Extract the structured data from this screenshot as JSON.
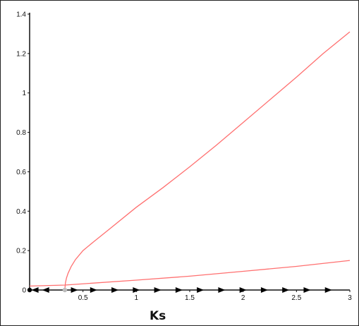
{
  "chart_data": {
    "type": "line",
    "title": "",
    "xlabel": "Ks",
    "ylabel": "",
    "xlim": [
      0,
      3
    ],
    "ylim": [
      0,
      1.4
    ],
    "xticks": [
      {
        "value": 0.5,
        "label": "0.5"
      },
      {
        "value": 1,
        "label": "1"
      },
      {
        "value": 1.5,
        "label": "1.5"
      },
      {
        "value": 2,
        "label": "2"
      },
      {
        "value": 2.5,
        "label": "2.5"
      },
      {
        "value": 3,
        "label": "3"
      }
    ],
    "yticks": [
      {
        "value": 0,
        "label": "0"
      },
      {
        "value": 0.2,
        "label": "0.2"
      },
      {
        "value": 0.4,
        "label": "0.4"
      },
      {
        "value": 0.6,
        "label": "0.6"
      },
      {
        "value": 0.8,
        "label": "0.8"
      },
      {
        "value": 1,
        "label": "1"
      },
      {
        "value": 1.2,
        "label": "1.2"
      },
      {
        "value": 1.4,
        "label": "1.4"
      }
    ],
    "grid": false,
    "legend": "none",
    "series": [
      {
        "color": "#ff7070",
        "x": [
          0.33,
          0.335,
          0.345,
          0.36,
          0.39,
          0.43,
          0.5,
          0.6,
          0.75,
          1.0,
          1.25,
          1.5,
          1.75,
          2.0,
          2.25,
          2.5,
          2.75,
          3.0
        ],
        "y": [
          0.0,
          0.035,
          0.06,
          0.085,
          0.12,
          0.155,
          0.2,
          0.245,
          0.31,
          0.42,
          0.52,
          0.625,
          0.735,
          0.85,
          0.965,
          1.08,
          1.2,
          1.31
        ]
      },
      {
        "color": "#ff7070",
        "x": [
          0.0,
          0.33,
          1.0,
          1.5,
          2.0,
          2.5,
          3.0
        ],
        "y": [
          0.02,
          0.025,
          0.05,
          0.07,
          0.095,
          0.12,
          0.15
        ]
      }
    ],
    "arrows_on_axis": {
      "color": "#000000",
      "x": [
        0.05,
        0.15,
        0.42,
        0.6,
        0.8,
        1.0,
        1.2,
        1.4,
        1.6,
        1.8,
        2.0,
        2.2,
        2.4,
        2.6,
        2.8
      ],
      "direction": [
        -1,
        -1,
        1,
        1,
        1,
        1,
        1,
        1,
        1,
        1,
        1,
        1,
        1,
        1,
        1
      ]
    },
    "points": [
      {
        "x": 0.0,
        "y": 0.0,
        "color": "#000000"
      },
      {
        "x": 0.33,
        "y": 0.0,
        "color": "#bbbbbb"
      }
    ]
  }
}
